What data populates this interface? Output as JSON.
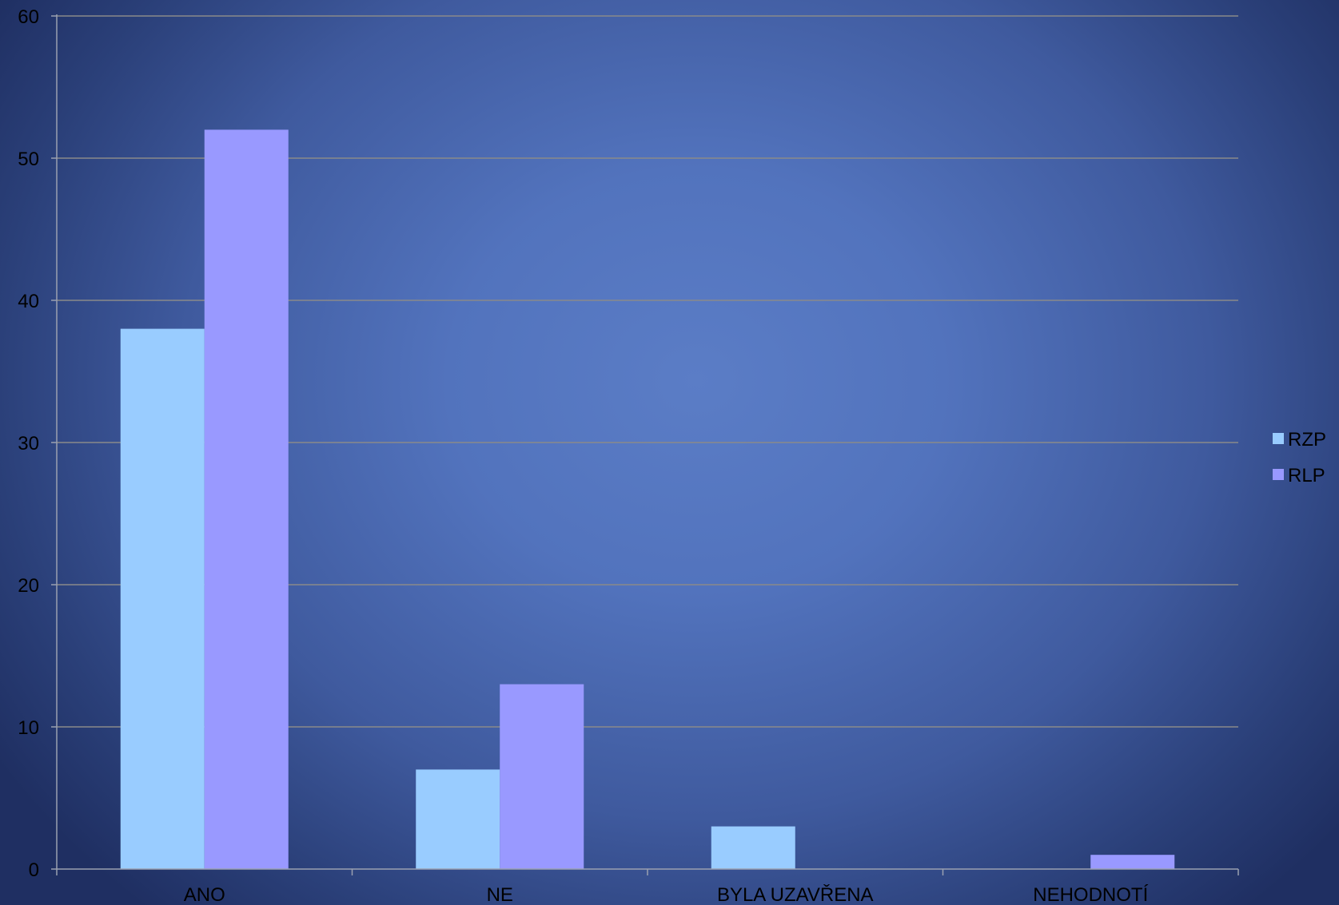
{
  "chart_data": {
    "type": "bar",
    "title": "",
    "xlabel": "",
    "ylabel": "",
    "categories": [
      "ANO",
      "NE",
      "BYLA UZAVŘENA",
      "NEHODNOTÍ"
    ],
    "series": [
      {
        "name": "RZP",
        "color": "#99ccff",
        "values": [
          38,
          7,
          3,
          0
        ]
      },
      {
        "name": "RLP",
        "color": "#9999ff",
        "values": [
          52,
          13,
          0,
          1
        ]
      }
    ],
    "ylim": [
      0,
      60
    ],
    "yticks": [
      0,
      10,
      20,
      30,
      40,
      50,
      60
    ],
    "grid": true,
    "legend_position": "right",
    "gridline_color": "#8a8a8a",
    "axis_color": "#9aa0b0"
  }
}
